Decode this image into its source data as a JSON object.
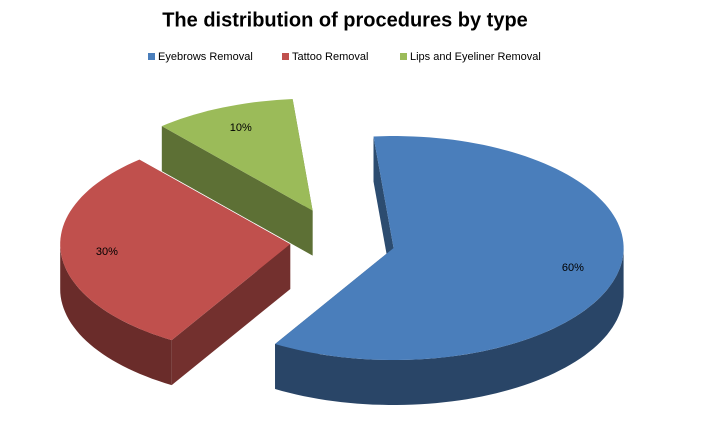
{
  "chart_data": {
    "type": "pie3d",
    "title": "The distribution of procedures by type",
    "categories": [
      "Eyebrows Removal",
      "Tattoo Removal",
      "Lips and Eyeliner Removal"
    ],
    "values": [
      60,
      30,
      10
    ],
    "value_labels": [
      "60%",
      "30%",
      "10%"
    ],
    "colors": [
      "#4a7ebb",
      "#c0504d",
      "#9bbb59"
    ],
    "legend": "top"
  }
}
